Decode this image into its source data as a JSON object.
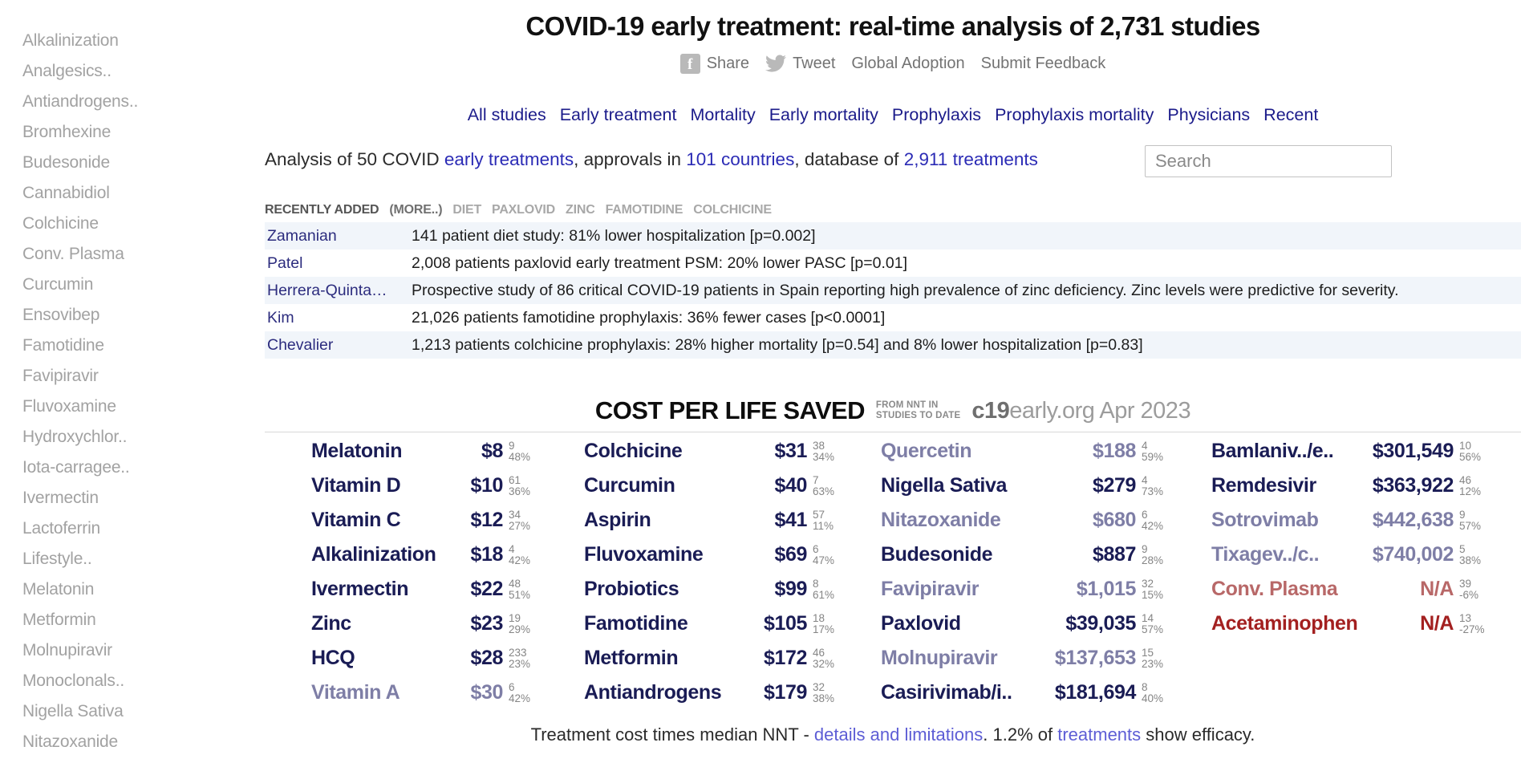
{
  "page": {
    "title": "COVID-19 early treatment: real-time analysis of 2,731 studies"
  },
  "share_bar": {
    "share": "Share",
    "tweet": "Tweet",
    "global_adoption": "Global Adoption",
    "submit_feedback": "Submit Feedback"
  },
  "nav": {
    "links": [
      "All studies",
      "Early treatment",
      "Mortality",
      "Early mortality",
      "Prophylaxis",
      "Prophylaxis mortality",
      "Physicians",
      "Recent"
    ]
  },
  "summary": {
    "segments": [
      {
        "text": "Analysis of 50 COVID ",
        "link": false
      },
      {
        "text": "early treatments",
        "link": true
      },
      {
        "text": ", approvals in ",
        "link": false
      },
      {
        "text": "101 countries",
        "link": true
      },
      {
        "text": ", database of ",
        "link": false
      },
      {
        "text": "2,911 treatments",
        "link": true
      }
    ]
  },
  "search": {
    "placeholder": "Search"
  },
  "sidebar": {
    "items": [
      "Alkalinization",
      "Analgesics..",
      "Antiandrogens..",
      "Bromhexine",
      "Budesonide",
      "Cannabidiol",
      "Colchicine",
      "Conv. Plasma",
      "Curcumin",
      "Ensovibep",
      "Famotidine",
      "Favipiravir",
      "Fluvoxamine",
      "Hydroxychlor..",
      "Iota-carragee..",
      "Ivermectin",
      "Lactoferrin",
      "Lifestyle..",
      "Melatonin",
      "Metformin",
      "Molnupiravir",
      "Monoclonals..",
      "Nigella Sativa",
      "Nitazoxanide"
    ]
  },
  "recent": {
    "heading": "RECENTLY ADDED",
    "more_label": "(MORE..)",
    "tags": [
      "DIET",
      "PAXLOVID",
      "ZINC",
      "FAMOTIDINE",
      "COLCHICINE"
    ],
    "rows": [
      {
        "author": "Zamanian",
        "summary": "141 patient diet study: 81% lower hospitalization [p=0.002]"
      },
      {
        "author": "Patel",
        "summary": "2,008 patients paxlovid early treatment PSM: 20% lower PASC [p=0.01]"
      },
      {
        "author": "Herrera-Quinta…",
        "summary": "Prospective study of 86 critical COVID-19 patients in Spain reporting high prevalence of zinc deficiency. Zinc levels were predictive for severity."
      },
      {
        "author": "Kim",
        "summary": "21,026 patients famotidine prophylaxis: 36% fewer cases [p<0.0001]"
      },
      {
        "author": "Chevalier",
        "summary": "1,213 patients colchicine prophylaxis: 28% higher mortality [p=0.54] and 8% lower hospitalization [p=0.83]"
      }
    ]
  },
  "cost_table": {
    "title": "COST PER LIFE SAVED",
    "subtitle_line1": "FROM NNT IN",
    "subtitle_line2": "STUDIES TO DATE",
    "brand_bold": "c19",
    "brand_rest": "early.org Apr 2023",
    "columns": [
      {
        "entries": [
          {
            "name": "Melatonin",
            "value": "$8",
            "studies": "9",
            "improvement": "48%",
            "tone": "strong"
          },
          {
            "name": "Vitamin D",
            "value": "$10",
            "studies": "61",
            "improvement": "36%",
            "tone": "strong"
          },
          {
            "name": "Vitamin C",
            "value": "$12",
            "studies": "34",
            "improvement": "27%",
            "tone": "strong"
          },
          {
            "name": "Alkalinization",
            "value": "$18",
            "studies": "4",
            "improvement": "42%",
            "tone": "strong"
          },
          {
            "name": "Ivermectin",
            "value": "$22",
            "studies": "48",
            "improvement": "51%",
            "tone": "strong"
          },
          {
            "name": "Zinc",
            "value": "$23",
            "studies": "19",
            "improvement": "29%",
            "tone": "strong"
          },
          {
            "name": "HCQ",
            "value": "$28",
            "studies": "233",
            "improvement": "23%",
            "tone": "strong"
          },
          {
            "name": "Vitamin A",
            "value": "$30",
            "studies": "6",
            "improvement": "42%",
            "tone": "faded"
          }
        ]
      },
      {
        "entries": [
          {
            "name": "Colchicine",
            "value": "$31",
            "studies": "38",
            "improvement": "34%",
            "tone": "strong"
          },
          {
            "name": "Curcumin",
            "value": "$40",
            "studies": "7",
            "improvement": "63%",
            "tone": "strong"
          },
          {
            "name": "Aspirin",
            "value": "$41",
            "studies": "57",
            "improvement": "11%",
            "tone": "strong"
          },
          {
            "name": "Fluvoxamine",
            "value": "$69",
            "studies": "6",
            "improvement": "47%",
            "tone": "strong"
          },
          {
            "name": "Probiotics",
            "value": "$99",
            "studies": "8",
            "improvement": "61%",
            "tone": "strong"
          },
          {
            "name": "Famotidine",
            "value": "$105",
            "studies": "18",
            "improvement": "17%",
            "tone": "strong"
          },
          {
            "name": "Metformin",
            "value": "$172",
            "studies": "46",
            "improvement": "32%",
            "tone": "strong"
          },
          {
            "name": "Antiandrogens",
            "value": "$179",
            "studies": "32",
            "improvement": "38%",
            "tone": "strong"
          }
        ]
      },
      {
        "entries": [
          {
            "name": "Quercetin",
            "value": "$188",
            "studies": "4",
            "improvement": "59%",
            "tone": "faded"
          },
          {
            "name": "Nigella Sativa",
            "value": "$279",
            "studies": "4",
            "improvement": "73%",
            "tone": "strong"
          },
          {
            "name": "Nitazoxanide",
            "value": "$680",
            "studies": "6",
            "improvement": "42%",
            "tone": "faded"
          },
          {
            "name": "Budesonide",
            "value": "$887",
            "studies": "9",
            "improvement": "28%",
            "tone": "strong"
          },
          {
            "name": "Favipiravir",
            "value": "$1,015",
            "studies": "32",
            "improvement": "15%",
            "tone": "faded"
          },
          {
            "name": "Paxlovid",
            "value": "$39,035",
            "studies": "14",
            "improvement": "57%",
            "tone": "strong"
          },
          {
            "name": "Molnupiravir",
            "value": "$137,653",
            "studies": "15",
            "improvement": "23%",
            "tone": "faded"
          },
          {
            "name": "Casirivimab/i..",
            "value": "$181,694",
            "studies": "8",
            "improvement": "40%",
            "tone": "strong"
          }
        ]
      },
      {
        "entries": [
          {
            "name": "Bamlaniv../e..",
            "value": "$301,549",
            "studies": "10",
            "improvement": "56%",
            "tone": "strong"
          },
          {
            "name": "Remdesivir",
            "value": "$363,922",
            "studies": "46",
            "improvement": "12%",
            "tone": "strong"
          },
          {
            "name": "Sotrovimab",
            "value": "$442,638",
            "studies": "9",
            "improvement": "57%",
            "tone": "faded"
          },
          {
            "name": "Tixagev../c..",
            "value": "$740,002",
            "studies": "5",
            "improvement": "38%",
            "tone": "faded"
          },
          {
            "name": "Conv. Plasma",
            "value": "N/A",
            "studies": "39",
            "improvement": "-6%",
            "tone": "red-faded"
          },
          {
            "name": "Acetaminophen",
            "value": "N/A",
            "studies": "13",
            "improvement": "-27%",
            "tone": "red-strong"
          }
        ]
      }
    ],
    "footnote_segments": [
      {
        "text": "Treatment cost times median NNT - ",
        "link": false
      },
      {
        "text": "details and limitations",
        "link": true
      },
      {
        "text": ". 1.2% of ",
        "link": false
      },
      {
        "text": "treatments",
        "link": true
      },
      {
        "text": " show efficacy.",
        "link": false
      }
    ]
  },
  "colors": {
    "nav_link": "#1b1b8a",
    "body_link": "#2b2bb5",
    "footnote_link": "#5d5dd5",
    "treatment_significant": "#1a1c55",
    "treatment_insignificant": "#7e7ea6",
    "treatment_negative_strong": "#a32020",
    "treatment_negative_faded": "#b86868",
    "superscript_gray": "#858585",
    "row_alt_background": "#f1f5fa",
    "sidebar_gray": "#a2a2a2"
  }
}
